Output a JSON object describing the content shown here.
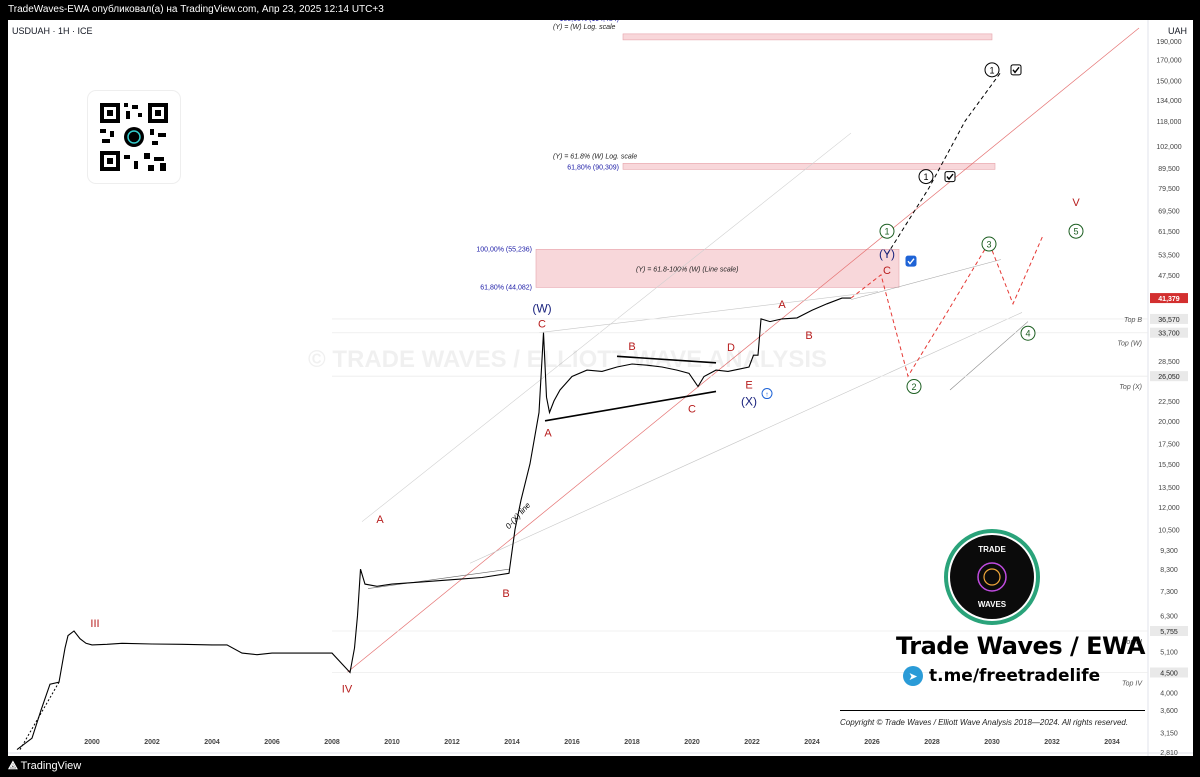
{
  "header": {
    "published_line": "TradeWaves-EWA опубликовал(а) на TradingView.com, Апр 23, 2025 12:14 UTC+3",
    "symbol_line": "USDUAH · 1H · ICE",
    "currency": "UAH"
  },
  "footer": {
    "tv_logo_text": "TradingView"
  },
  "watermark": "© TRADE WAVES / ELLIOTT WAVE ANALYSIS",
  "branding": {
    "badge_top": "TRADE",
    "badge_bottom": "WAVES",
    "title": "Trade Waves / EWA",
    "telegram": "t.me/freetradelife",
    "copyright": "Copyright © Trade Waves / Elliott Wave Analysis 2018—2024. All rights reserved."
  },
  "colors": {
    "wave_red": "#b71c1c",
    "wave_blue": "#1a237e",
    "wave_green": "#1b5e20",
    "price_marker": "#d32f2f",
    "fib_zone": "#f8d7da",
    "fib_text": "#1a1aa6"
  },
  "icons": [
    "qr-code-icon",
    "telegram-icon",
    "tradingview-logo-icon",
    "checkbox-icon"
  ],
  "chart_data": {
    "type": "line",
    "title": "USDUAH · 1H · ICE",
    "y_scale": "log",
    "ylim": [
      2810,
      205000
    ],
    "xlim": [
      1997.2,
      2035.2
    ],
    "x_tick_labels": [
      "2000",
      "2002",
      "2004",
      "2006",
      "2008",
      "2010",
      "2012",
      "2014",
      "2016",
      "2018",
      "2020",
      "2022",
      "2024",
      "2026",
      "2028",
      "2030",
      "2032",
      "2034"
    ],
    "x_tick_values": [
      2000,
      2002,
      2004,
      2006,
      2008,
      2010,
      2012,
      2014,
      2016,
      2018,
      2020,
      2022,
      2024,
      2026,
      2028,
      2030,
      2032,
      2034
    ],
    "y_tick_labels": [
      "190,000",
      "170,000",
      "150,000",
      "134,000",
      "118,000",
      "102,000",
      "89,500",
      "79,500",
      "69,500",
      "61,500",
      "53,500",
      "47,500",
      "36,570",
      "33,700",
      "28,500",
      "26,050",
      "22,500",
      "20,000",
      "17,500",
      "15,500",
      "13,500",
      "12,000",
      "10,500",
      "9,300",
      "8,300",
      "7,300",
      "6,300",
      "5,755",
      "5,100",
      "4,500",
      "4,000",
      "3,600",
      "3,150",
      "2,810"
    ],
    "y_tick_values": [
      190000,
      170000,
      150000,
      134000,
      118000,
      102000,
      89500,
      79500,
      69500,
      61500,
      53500,
      47500,
      36570,
      33700,
      28500,
      26050,
      22500,
      20000,
      17500,
      15500,
      13500,
      12000,
      10500,
      9300,
      8300,
      7300,
      6300,
      5755,
      5100,
      4500,
      4000,
      3600,
      3150,
      2810
    ],
    "last_price": {
      "label": "41,379",
      "value": 41379
    },
    "highlighted_levels": [
      {
        "value": 36570,
        "label": "36,570",
        "tag": "Top B"
      },
      {
        "value": 33700,
        "label": "33,700",
        "tag": "Top (W)"
      },
      {
        "value": 26050,
        "label": "26,050",
        "tag": "Top (X)"
      },
      {
        "value": 5755,
        "label": "5,755",
        "tag": "Top III"
      },
      {
        "value": 4500,
        "label": "4,500",
        "tag": "Top IV"
      }
    ],
    "fib_zones": [
      {
        "low": 44082,
        "high": 55236,
        "x0": 2014.8,
        "x1": 2026.9,
        "label": "(Y) = 61.8-100% (W) (Line scale)",
        "low_label": "61,80% (44,082)",
        "high_label": "100,00% (55,236)"
      },
      {
        "low": 90309,
        "high": 90309,
        "x0": 2017.7,
        "x1": 2030.1,
        "label": "(Y) = 61.8% (W) Log. scale",
        "low_label": "61,80% (90,309)"
      },
      {
        "low": 194484,
        "high": 194484,
        "x0": 2017.7,
        "x1": 2030.0,
        "label": "(Y) = (W) Log. scale",
        "high_label": "100,00% (194,484)"
      }
    ],
    "series": [
      {
        "name": "USDUAH",
        "x": [
          1997.5,
          1998.0,
          1998.3,
          1998.6,
          1998.9,
          1999.1,
          1999.2,
          1999.4,
          1999.6,
          1999.8,
          2000.0,
          2000.5,
          2001.0,
          2002.0,
          2003.0,
          2004.0,
          2004.5,
          2005.0,
          2005.5,
          2006.0,
          2007.0,
          2008.0,
          2008.6,
          2008.75,
          2008.85,
          2008.95,
          2009.1,
          2009.5,
          2010.0,
          2011.0,
          2012.0,
          2013.0,
          2013.9,
          2014.1,
          2014.3,
          2014.6,
          2014.9,
          2015.05,
          2015.15,
          2015.25,
          2015.4,
          2015.6,
          2016.0,
          2016.5,
          2017.0,
          2017.5,
          2018.0,
          2018.5,
          2019.0,
          2019.5,
          2019.9,
          2020.2,
          2020.4,
          2020.8,
          2021.2,
          2021.6,
          2021.9,
          2022.05,
          2022.2,
          2022.3,
          2022.6,
          2023.0,
          2023.5,
          2024.0,
          2024.5,
          2025.0,
          2025.3
        ],
        "y": [
          2850,
          3050,
          3600,
          4200,
          4250,
          5200,
          5600,
          5755,
          5500,
          5350,
          5300,
          5320,
          5350,
          5330,
          5320,
          5300,
          5300,
          5050,
          5000,
          5050,
          5050,
          5050,
          4500,
          5200,
          6300,
          8300,
          7600,
          7500,
          7600,
          7700,
          7800,
          7900,
          8100,
          10500,
          12500,
          15500,
          21000,
          33700,
          23000,
          21000,
          22500,
          24000,
          26000,
          27000,
          26800,
          27500,
          28000,
          27800,
          27500,
          27000,
          26500,
          24500,
          26000,
          27000,
          26800,
          27200,
          27500,
          29500,
          29500,
          36570,
          36000,
          36570,
          36800,
          38500,
          40000,
          41379,
          41379
        ]
      }
    ],
    "projections": [
      {
        "name": "black-dashed",
        "x": [
          2026.5,
          2027.9,
          2029.1,
          2030.3
        ],
        "y": [
          53500,
          79500,
          118000,
          158000
        ],
        "labels": [
          "1",
          "1"
        ]
      },
      {
        "name": "red-dashed",
        "x": [
          2025.3,
          2026.3,
          2027.2,
          2028.5,
          2029.9,
          2030.7,
          2031.7
        ],
        "y": [
          41379,
          47500,
          26050,
          38000,
          57500,
          40000,
          60000
        ],
        "labels": [
          "2",
          "3",
          "4",
          "5"
        ]
      }
    ],
    "wave_labels": [
      {
        "text": "III",
        "x": 2000.1,
        "y": 5900,
        "color": "red"
      },
      {
        "text": "IV",
        "x": 2008.5,
        "y": 4000,
        "color": "red"
      },
      {
        "text": "A",
        "x": 2009.6,
        "y": 10900,
        "color": "red"
      },
      {
        "text": "B",
        "x": 2013.8,
        "y": 7050,
        "color": "red"
      },
      {
        "text": "C",
        "x": 2015.0,
        "y": 34800,
        "color": "red"
      },
      {
        "text": "(W)",
        "x": 2015.0,
        "y": 38000,
        "color": "blue"
      },
      {
        "text": "A",
        "x": 2015.2,
        "y": 18200,
        "color": "red"
      },
      {
        "text": "B",
        "x": 2018.0,
        "y": 30400,
        "color": "red"
      },
      {
        "text": "C",
        "x": 2020.0,
        "y": 21000,
        "color": "red"
      },
      {
        "text": "D",
        "x": 2021.3,
        "y": 30200,
        "color": "red"
      },
      {
        "text": "E",
        "x": 2021.9,
        "y": 24200,
        "color": "red"
      },
      {
        "text": "(X)",
        "x": 2021.9,
        "y": 21900,
        "color": "blue"
      },
      {
        "text": "A",
        "x": 2023.0,
        "y": 39000,
        "color": "red"
      },
      {
        "text": "B",
        "x": 2023.9,
        "y": 32500,
        "color": "red"
      },
      {
        "text": "C",
        "x": 2026.5,
        "y": 47700,
        "color": "red"
      },
      {
        "text": "(Y)",
        "x": 2026.5,
        "y": 52500,
        "color": "blue"
      },
      {
        "text": "V",
        "x": 2032.8,
        "y": 71500,
        "color": "red"
      }
    ],
    "annotations": [
      "0-(X) line"
    ],
    "grid": false,
    "legend": "none"
  }
}
